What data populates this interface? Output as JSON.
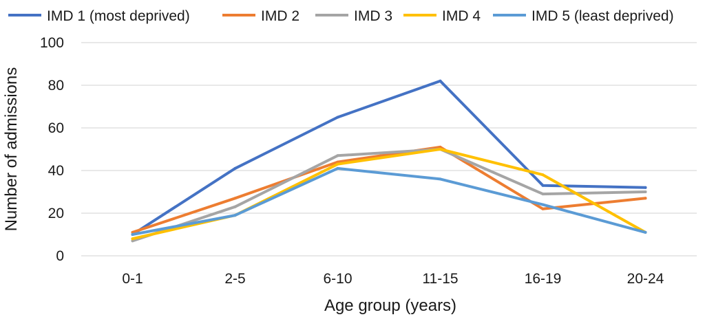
{
  "chart_data": {
    "type": "line",
    "title": "",
    "xlabel": "Age group (years)",
    "ylabel": "Number of admissions",
    "categories": [
      "0-1",
      "2-5",
      "6-10",
      "11-15",
      "16-19",
      "20-24"
    ],
    "ylim": [
      0,
      100
    ],
    "yticks": [
      0,
      20,
      40,
      60,
      80,
      100
    ],
    "grid": true,
    "legend_position": "top",
    "series": [
      {
        "name": "IMD 1 (most deprived)",
        "color": "#4472c4",
        "values": [
          10,
          41,
          65,
          82,
          33,
          32
        ]
      },
      {
        "name": "IMD 2",
        "color": "#ed7d31",
        "values": [
          11,
          27,
          44,
          51,
          22,
          27
        ]
      },
      {
        "name": "IMD 3",
        "color": "#a5a5a5",
        "values": [
          7,
          23,
          47,
          50,
          29,
          30
        ]
      },
      {
        "name": "IMD 4",
        "color": "#ffc000",
        "values": [
          8,
          19,
          43,
          50,
          38,
          11
        ]
      },
      {
        "name": "IMD 5 (least deprived)",
        "color": "#5b9bd5",
        "values": [
          10,
          19,
          41,
          36,
          24,
          11
        ]
      }
    ]
  }
}
